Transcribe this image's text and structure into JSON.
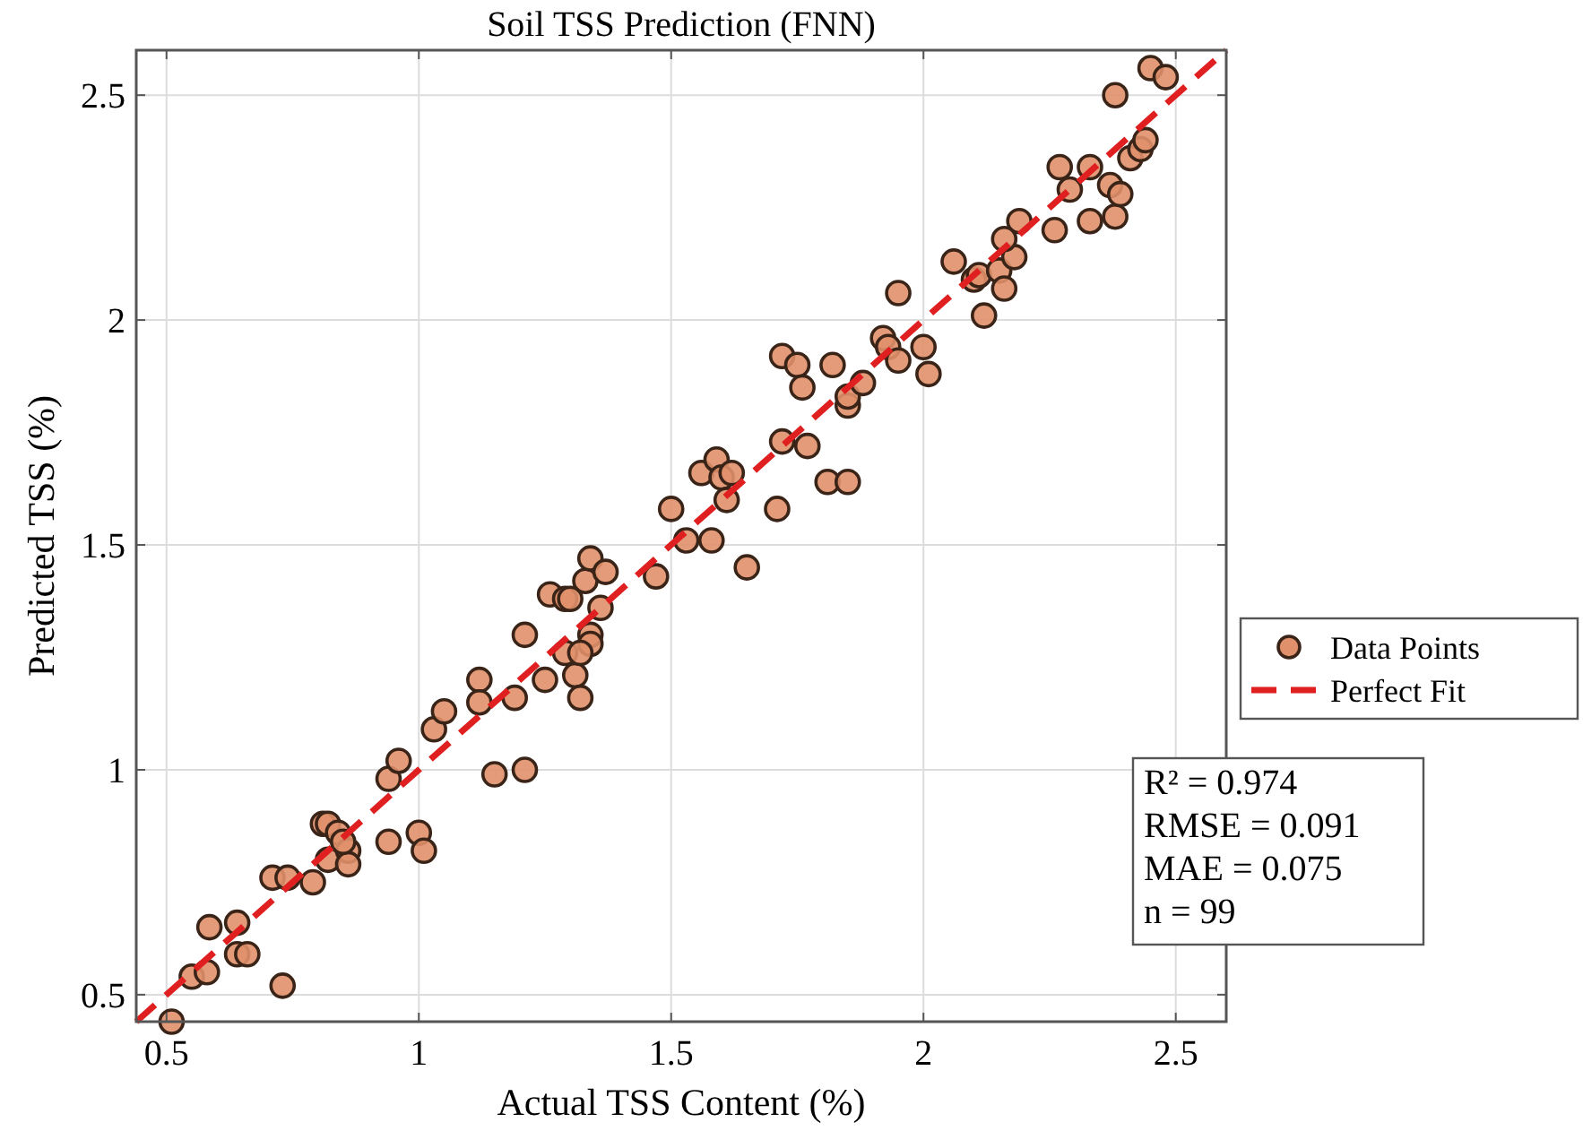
{
  "chart_data": {
    "type": "scatter",
    "title": "Soil TSS Prediction (FNN)",
    "xlabel": "Actual TSS Content (%)",
    "ylabel": "Predicted TSS (%)",
    "xlim": [
      0.44,
      2.6
    ],
    "ylim": [
      0.44,
      2.6
    ],
    "xticks": [
      0.5,
      1,
      1.5,
      2,
      2.5
    ],
    "yticks": [
      0.5,
      1,
      1.5,
      2,
      2.5
    ],
    "grid": true,
    "legend": "right",
    "annotations": [
      "R² = 0.974",
      "RMSE = 0.091",
      "MAE = 0.075",
      "n = 99"
    ],
    "series": [
      {
        "name": "Data Points",
        "color": "#e0906a",
        "marker": "circle",
        "x": [
          0.51,
          0.55,
          0.58,
          0.585,
          0.64,
          0.64,
          0.66,
          0.73,
          0.71,
          0.74,
          0.79,
          0.81,
          0.82,
          0.84,
          0.82,
          0.86,
          0.86,
          0.85,
          0.94,
          0.94,
          0.96,
          1.0,
          1.01,
          1.03,
          1.05,
          1.12,
          1.12,
          1.15,
          1.19,
          1.21,
          1.21,
          1.25,
          1.26,
          1.29,
          1.3,
          1.29,
          1.31,
          1.32,
          1.33,
          1.34,
          1.37,
          1.36,
          1.34,
          1.34,
          1.32,
          1.47,
          1.53,
          1.58,
          1.65,
          1.5,
          1.56,
          1.59,
          1.6,
          1.61,
          1.62,
          1.71,
          1.72,
          1.77,
          1.82,
          1.72,
          1.75,
          1.76,
          1.85,
          1.85,
          1.88,
          1.81,
          1.85,
          1.92,
          1.93,
          1.95,
          1.95,
          2.0,
          2.01,
          2.06,
          2.1,
          2.12,
          2.11,
          2.15,
          2.16,
          2.18,
          2.19,
          2.16,
          2.26,
          2.27,
          2.29,
          2.33,
          2.33,
          2.37,
          2.38,
          2.39,
          2.38,
          2.41,
          2.43,
          2.44,
          2.45,
          2.48
        ],
        "values": [
          0.44,
          0.54,
          0.55,
          0.65,
          0.66,
          0.59,
          0.59,
          0.52,
          0.76,
          0.76,
          0.75,
          0.88,
          0.88,
          0.86,
          0.8,
          0.82,
          0.79,
          0.84,
          0.84,
          0.98,
          1.02,
          0.86,
          0.82,
          1.09,
          1.13,
          1.2,
          1.15,
          0.99,
          1.16,
          1.3,
          1.0,
          1.2,
          1.39,
          1.38,
          1.38,
          1.26,
          1.21,
          1.16,
          1.42,
          1.47,
          1.44,
          1.36,
          1.3,
          1.28,
          1.26,
          1.43,
          1.51,
          1.51,
          1.45,
          1.58,
          1.66,
          1.69,
          1.65,
          1.6,
          1.66,
          1.58,
          1.73,
          1.72,
          1.9,
          1.92,
          1.9,
          1.85,
          1.81,
          1.83,
          1.86,
          1.64,
          1.64,
          1.96,
          1.94,
          1.91,
          2.06,
          1.94,
          1.88,
          2.13,
          2.09,
          2.01,
          2.1,
          2.11,
          2.07,
          2.14,
          2.22,
          2.18,
          2.2,
          2.34,
          2.29,
          2.34,
          2.22,
          2.3,
          2.23,
          2.28,
          2.5,
          2.36,
          2.38,
          2.4,
          2.56,
          2.54
        ]
      },
      {
        "name": "Perfect Fit",
        "type": "line",
        "color": "#e02020",
        "line_style": "dashed",
        "x": [
          0.44,
          2.6
        ],
        "values": [
          0.44,
          2.6
        ]
      }
    ]
  }
}
